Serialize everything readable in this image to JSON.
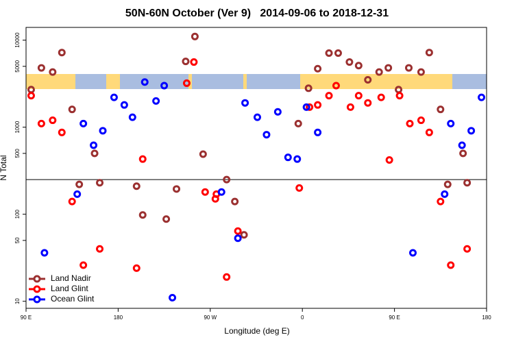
{
  "chart_data": {
    "type": "scatter",
    "title": "50N-60N October (Ver 9)   2014-09-06 to 2018-12-31",
    "x_label": "Longitude (deg E)",
    "y_label": "N Total",
    "yscale": "log",
    "xlim": [
      90,
      540
    ],
    "ylim": [
      8.3,
      14000
    ],
    "xticks": [
      {
        "value": 90,
        "label": "90 E"
      },
      180,
      {
        "value": 270,
        "label": "90 W"
      },
      {
        "value": 360,
        "label": "0"
      },
      {
        "value": 450,
        "label": "90 E"
      },
      {
        "value": 540,
        "label": "180"
      }
    ],
    "yticks": [
      10,
      50,
      100,
      500,
      1000,
      5000,
      10000
    ],
    "reference_line": 250,
    "legend": "bottom-left",
    "series": [
      {
        "name": "Land Nadir",
        "color": "#9b3030",
        "x": [
          95,
          105,
          116,
          125,
          135,
          142,
          157,
          162,
          198,
          204,
          227,
          237,
          246,
          255,
          263,
          286,
          294,
          303,
          356,
          366,
          375,
          386,
          395,
          406,
          415,
          424,
          435,
          444,
          454,
          464,
          476,
          484,
          495,
          502,
          517,
          521
        ],
        "values": [
          2700,
          4800,
          4300,
          7200,
          1600,
          220,
          500,
          230,
          210,
          98,
          88,
          195,
          5700,
          11000,
          490,
          250,
          140,
          58,
          1100,
          2800,
          4700,
          7100,
          7100,
          5600,
          5100,
          3500,
          4300,
          4800,
          2700,
          4800,
          4300,
          7200,
          1600,
          220,
          500,
          230
        ]
      },
      {
        "name": "Land Glint",
        "color": "#ff0000",
        "x": [
          95,
          105,
          116,
          125,
          135,
          146,
          162,
          198,
          204,
          247,
          254,
          265,
          275,
          276,
          286,
          297,
          357,
          367,
          375,
          386,
          393,
          407,
          415,
          424,
          437,
          445,
          455,
          465,
          476,
          484,
          495,
          505,
          521
        ],
        "values": [
          2300,
          1100,
          1200,
          870,
          140,
          26,
          40,
          24,
          430,
          3200,
          5600,
          180,
          150,
          170,
          19,
          64,
          200,
          1700,
          1800,
          2300,
          3000,
          1700,
          2300,
          1900,
          2200,
          420,
          2300,
          1100,
          1200,
          870,
          140,
          26,
          40
        ]
      },
      {
        "name": "Ocean Glint",
        "color": "#0000ff",
        "x": [
          108,
          140,
          146,
          156,
          165,
          176,
          186,
          194,
          206,
          217,
          225,
          233,
          281,
          297,
          304,
          316,
          325,
          336,
          346,
          355,
          364,
          375,
          468,
          499,
          505,
          516,
          525,
          535
        ],
        "values": [
          36,
          170,
          1100,
          620,
          910,
          2200,
          1800,
          1300,
          3300,
          2000,
          3000,
          11,
          180,
          53,
          1900,
          1300,
          820,
          1500,
          450,
          430,
          1700,
          870,
          36,
          170,
          1100,
          620,
          910,
          2200
        ]
      }
    ]
  }
}
